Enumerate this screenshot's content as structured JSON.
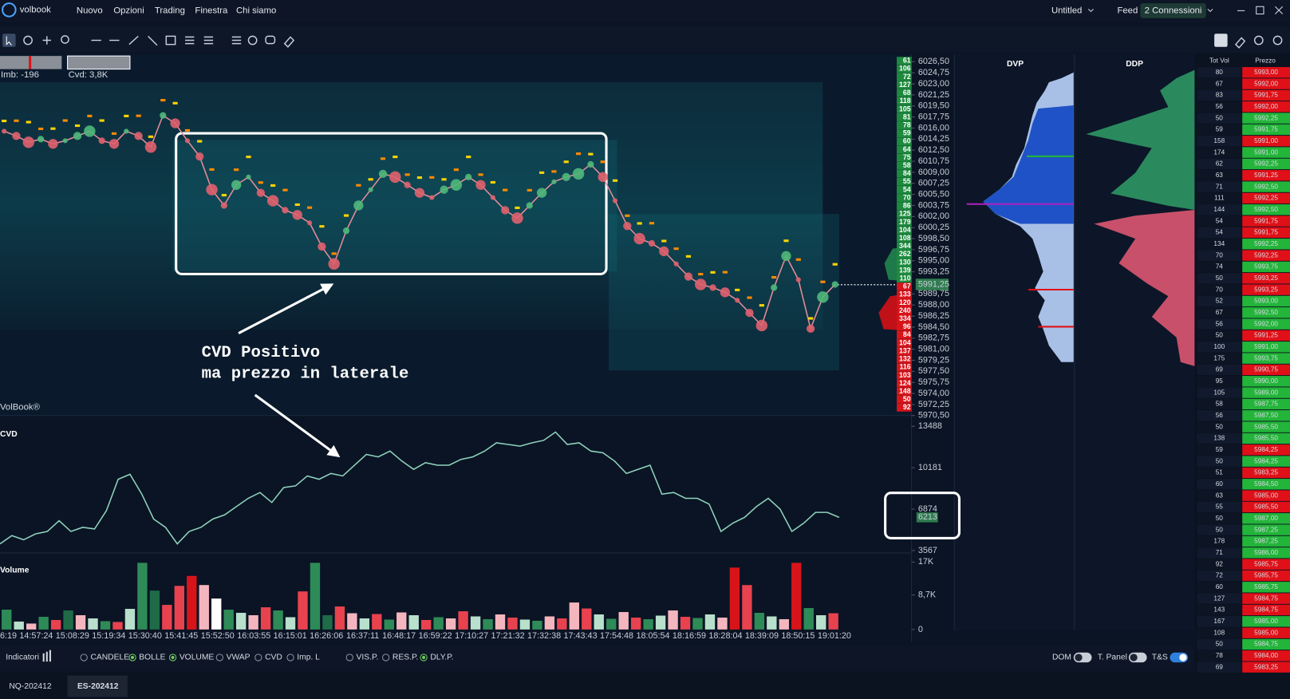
{
  "menu": {
    "logo": "volbook",
    "items": [
      "Nuovo",
      "Opzioni",
      "Trading",
      "Finestra",
      "Chi siamo"
    ],
    "workspace": "Untitled",
    "feed": "Feed",
    "connections": "2 Connessioni"
  },
  "main_chart": {
    "imb": "Imb: -196",
    "cvd": "Cvd: 3,8K",
    "watermark": "VolBook®",
    "ylim": [
      5970.5,
      6026.5
    ],
    "yticks": [
      {
        "value": 6026.5,
        "label": "6026,50"
      },
      {
        "value": 6024.75,
        "label": "6024,75"
      },
      {
        "value": 6023,
        "label": "6023,00"
      },
      {
        "value": 6021.25,
        "label": "6021,25"
      },
      {
        "value": 6019.5,
        "label": "6019,50"
      },
      {
        "value": 6017.75,
        "label": "6017,75"
      },
      {
        "value": 6016,
        "label": "6016,00"
      },
      {
        "value": 6014.25,
        "label": "6014,25"
      },
      {
        "value": 6012.5,
        "label": "6012,50"
      },
      {
        "value": 6010.75,
        "label": "6010,75"
      },
      {
        "value": 6009,
        "label": "6009,00"
      },
      {
        "value": 6007.25,
        "label": "6007,25"
      },
      {
        "value": 6005.5,
        "label": "6005,50"
      },
      {
        "value": 6003.75,
        "label": "6003,75"
      },
      {
        "value": 6002,
        "label": "6002,00"
      },
      {
        "value": 6000.25,
        "label": "6000,25"
      },
      {
        "value": 5998.5,
        "label": "5998,50"
      },
      {
        "value": 5996.75,
        "label": "5996,75"
      },
      {
        "value": 5995,
        "label": "5995,00"
      },
      {
        "value": 5993.25,
        "label": "5993,25"
      },
      {
        "value": 5989.75,
        "label": "5989,75"
      },
      {
        "value": 5988,
        "label": "5988,00"
      },
      {
        "value": 5986.25,
        "label": "5986,25"
      },
      {
        "value": 5984.5,
        "label": "5984,50"
      },
      {
        "value": 5982.75,
        "label": "5982,75"
      },
      {
        "value": 5981,
        "label": "5981,00"
      },
      {
        "value": 5979.25,
        "label": "5979,25"
      },
      {
        "value": 5977.5,
        "label": "5977,50"
      },
      {
        "value": 5975.75,
        "label": "5975,75"
      },
      {
        "value": 5974,
        "label": "5974,00"
      },
      {
        "value": 5972.25,
        "label": "5972,25"
      },
      {
        "value": 5970.5,
        "label": "5970,50"
      }
    ],
    "current_price": {
      "value": 5991.25,
      "label": "5991,25"
    },
    "ask_color": "#1e8a3e",
    "bid_color": "#d7141a",
    "ask_volumes": [
      61,
      106,
      72,
      127,
      68,
      118,
      105,
      81,
      78,
      59,
      60,
      64,
      75,
      58,
      84,
      55,
      54,
      70,
      86,
      125,
      179,
      104,
      108,
      344,
      262,
      130,
      139,
      110
    ],
    "bid_volumes": [
      67,
      133,
      120,
      240,
      334,
      96,
      84,
      104,
      137,
      132,
      116,
      103,
      124,
      148,
      50,
      92
    ],
    "price_color": "#e58d98",
    "price": [
      6015.5,
      6014.75,
      6013.75,
      6014.25,
      6013.5,
      6014,
      6014.75,
      6015.5,
      6014,
      6013.5,
      6015.5,
      6014.75,
      6013,
      6018,
      6016.75,
      6014,
      6011.5,
      6006.25,
      6003.75,
      6007,
      6008.25,
      6005.75,
      6004.5,
      6003,
      6002.25,
      6001,
      5997.25,
      5994.5,
      5999.75,
      6003.75,
      6006.25,
      6008.75,
      6008.25,
      6007,
      6005.75,
      6005,
      6006.25,
      6007,
      6008.25,
      6007,
      6005,
      6003,
      6001.75,
      6003.75,
      6005.75,
      6007.5,
      6008.25,
      6008.75,
      6010.25,
      6008.25,
      6004.5,
      6000.5,
      5998.5,
      5997.75,
      5996.5,
      5994.5,
      5992.5,
      5991.25,
      5990.75,
      5990,
      5988.75,
      5986.75,
      5984.75,
      5990.75,
      5995.75,
      5992,
      5984.25,
      5989.25,
      5991.25
    ]
  },
  "annotation": [
    "CVD Positivo",
    "ma prezzo in laterale"
  ],
  "cvd_panel": {
    "title": "CVD",
    "color": "#8fd2bd",
    "ylim": [
      3567,
      13488
    ],
    "yticks": [
      13488,
      10181,
      6874,
      3567
    ],
    "current": 6213,
    "values": [
      4096,
      4758,
      4427,
      4890,
      5088,
      5948,
      5088,
      5419,
      5287,
      6742,
      9255,
      9652,
      8065,
      6080,
      5419,
      4096,
      5088,
      5419,
      6080,
      6411,
      7072,
      7734,
      8197,
      7403,
      8594,
      8726,
      9520,
      9255,
      9718,
      9520,
      10379,
      11239,
      11041,
      11504,
      10710,
      10049,
      10578,
      10379,
      10379,
      10842,
      11041,
      11504,
      12165,
      12033,
      11901,
      12165,
      12364,
      13025,
      12033,
      12165,
      11504,
      11371,
      10710,
      9718,
      10049,
      10379,
      8065,
      8197,
      7734,
      7734,
      7271,
      5088,
      5750,
      6213,
      7072,
      7734,
      6874,
      5088,
      5750,
      6610,
      6610,
      6213
    ]
  },
  "volume_panel": {
    "title": "Volume",
    "ylim": [
      0,
      17000
    ],
    "yticks": [
      {
        "value": 17000,
        "label": "17K"
      },
      {
        "value": 8700,
        "label": "8,7K"
      },
      0
    ],
    "values": [
      5000,
      2000,
      1500,
      3200,
      2400,
      4800,
      3600,
      2800,
      2100,
      1900,
      5200,
      16800,
      9800,
      6200,
      11000,
      13500,
      11200,
      7800,
      5000,
      4200,
      3600,
      5600,
      4800,
      3100,
      9600,
      16800,
      3600,
      5800,
      4100,
      2800,
      3900,
      2500,
      4300,
      3600,
      2400,
      3100,
      2800,
      4600,
      3300,
      2600,
      3800,
      3000,
      2500,
      2200,
      3300,
      2800,
      6800,
      5300,
      3800,
      2700,
      4400,
      3000,
      2600,
      3500,
      4800,
      3200,
      2900,
      3800,
      3000,
      15600,
      11200,
      4200,
      3300,
      2600,
      16800,
      5400,
      3600,
      4100
    ],
    "colors": [
      "#2e8b57",
      "#b8e0cc",
      "#f4b6be",
      "#2e8b57",
      "#e8424f",
      "#1f6b48",
      "#f4b6be",
      "#b8e0cc",
      "#2e8b57",
      "#e8424f",
      "#b8e0cc",
      "#2e8b57",
      "#1f6b48",
      "#e8424f",
      "#e8424f",
      "#d7141a",
      "#f4b6be",
      "#ffffff",
      "#2e8b57",
      "#b8e0cc",
      "#f4b6be",
      "#e8424f",
      "#2e8b57",
      "#b8e0cc",
      "#e8424f",
      "#2e8b57",
      "#1f6b48",
      "#e8424f",
      "#f4b6be",
      "#b8e0cc",
      "#e8424f",
      "#2e8b57",
      "#f4b6be",
      "#b8e0cc",
      "#e8424f",
      "#2e8b57",
      "#f4b6be",
      "#e8424f",
      "#b8e0cc",
      "#2e8b57",
      "#f4b6be",
      "#e8424f",
      "#b8e0cc",
      "#2e8b57",
      "#f4b6be",
      "#e8424f",
      "#f4b6be",
      "#e8424f",
      "#b8e0cc",
      "#2e8b57",
      "#f4b6be",
      "#e8424f",
      "#2e8b57",
      "#b8e0cc",
      "#f4b6be",
      "#e8424f",
      "#2e8b57",
      "#b8e0cc",
      "#f4b6be",
      "#d7141a",
      "#e8424f",
      "#2e8b57",
      "#b8e0cc",
      "#f4b6be",
      "#d7141a",
      "#2e8b57",
      "#b8e0cc",
      "#e8424f"
    ]
  },
  "time_labels": [
    "6:19",
    "14:57:24",
    "15:08:29",
    "15:19:34",
    "15:30:40",
    "15:41:45",
    "15:52:50",
    "16:03:55",
    "16:15:01",
    "16:26:06",
    "16:37:11",
    "16:48:17",
    "16:59:22",
    "17:10:27",
    "17:21:32",
    "17:32:38",
    "17:43:43",
    "17:54:48",
    "18:05:54",
    "18:16:59",
    "18:28:04",
    "18:39:09",
    "18:50:15",
    "19:01:20"
  ],
  "profiles": {
    "dvp": "DVP",
    "ddp": "DDP"
  },
  "dom": {
    "headers": [
      "Tot Vol",
      "Prezzo"
    ],
    "rows": [
      {
        "vol": 80,
        "price": "5993,00",
        "color": "#e01018"
      },
      {
        "vol": 67,
        "price": "5992,00",
        "color": "#e01018"
      },
      {
        "vol": 83,
        "price": "5991,75",
        "color": "#e01018"
      },
      {
        "vol": 56,
        "price": "5992,00",
        "color": "#e01018"
      },
      {
        "vol": 50,
        "price": "5992,25",
        "color": "#23b43a"
      },
      {
        "vol": 59,
        "price": "5991,75",
        "color": "#23b43a"
      },
      {
        "vol": 158,
        "price": "5991,00",
        "color": "#e01018"
      },
      {
        "vol": 174,
        "price": "5991,00",
        "color": "#23b43a"
      },
      {
        "vol": 62,
        "price": "5992,25",
        "color": "#23b43a"
      },
      {
        "vol": 63,
        "price": "5991,25",
        "color": "#e01018"
      },
      {
        "vol": 71,
        "price": "5992,50",
        "color": "#23b43a"
      },
      {
        "vol": 111,
        "price": "5992,25",
        "color": "#e01018"
      },
      {
        "vol": 144,
        "price": "5992,50",
        "color": "#23b43a"
      },
      {
        "vol": 54,
        "price": "5991,75",
        "color": "#e01018"
      },
      {
        "vol": 54,
        "price": "5991,75",
        "color": "#e01018"
      },
      {
        "vol": 134,
        "price": "5992,25",
        "color": "#23b43a"
      },
      {
        "vol": 70,
        "price": "5992,25",
        "color": "#e01018"
      },
      {
        "vol": 74,
        "price": "5993,75",
        "color": "#23b43a"
      },
      {
        "vol": 50,
        "price": "5993,25",
        "color": "#e01018"
      },
      {
        "vol": 70,
        "price": "5993,25",
        "color": "#e01018"
      },
      {
        "vol": 52,
        "price": "5993,00",
        "color": "#23b43a"
      },
      {
        "vol": 67,
        "price": "5992,50",
        "color": "#23b43a"
      },
      {
        "vol": 56,
        "price": "5992,00",
        "color": "#23b43a"
      },
      {
        "vol": 50,
        "price": "5991,25",
        "color": "#e01018"
      },
      {
        "vol": 100,
        "price": "5991,00",
        "color": "#23b43a"
      },
      {
        "vol": 175,
        "price": "5993,75",
        "color": "#23b43a"
      },
      {
        "vol": 69,
        "price": "5990,75",
        "color": "#e01018"
      },
      {
        "vol": 95,
        "price": "5990,00",
        "color": "#23b43a"
      },
      {
        "vol": 105,
        "price": "5989,00",
        "color": "#23b43a"
      },
      {
        "vol": 58,
        "price": "5987,75",
        "color": "#23b43a"
      },
      {
        "vol": 56,
        "price": "5987,50",
        "color": "#23b43a"
      },
      {
        "vol": 50,
        "price": "5985,50",
        "color": "#23b43a"
      },
      {
        "vol": 138,
        "price": "5985,50",
        "color": "#23b43a"
      },
      {
        "vol": 59,
        "price": "5984,25",
        "color": "#e01018"
      },
      {
        "vol": 50,
        "price": "5984,25",
        "color": "#23b43a"
      },
      {
        "vol": 51,
        "price": "5983,25",
        "color": "#e01018"
      },
      {
        "vol": 60,
        "price": "5984,50",
        "color": "#23b43a"
      },
      {
        "vol": 63,
        "price": "5985,00",
        "color": "#e01018"
      },
      {
        "vol": 55,
        "price": "5985,50",
        "color": "#e01018"
      },
      {
        "vol": 50,
        "price": "5987,00",
        "color": "#23b43a"
      },
      {
        "vol": 50,
        "price": "5987,25",
        "color": "#23b43a"
      },
      {
        "vol": 178,
        "price": "5987,25",
        "color": "#23b43a"
      },
      {
        "vol": 71,
        "price": "5986,00",
        "color": "#23b43a"
      },
      {
        "vol": 92,
        "price": "5985,75",
        "color": "#e01018"
      },
      {
        "vol": 72,
        "price": "5985,75",
        "color": "#e01018"
      },
      {
        "vol": 60,
        "price": "5985,75",
        "color": "#23b43a"
      },
      {
        "vol": 127,
        "price": "5984,75",
        "color": "#e01018"
      },
      {
        "vol": 143,
        "price": "5984,75",
        "color": "#e01018"
      },
      {
        "vol": 167,
        "price": "5985,00",
        "color": "#23b43a"
      },
      {
        "vol": 108,
        "price": "5985,00",
        "color": "#e01018"
      },
      {
        "vol": 50,
        "price": "5984,75",
        "color": "#23b43a"
      },
      {
        "vol": 78,
        "price": "5984,00",
        "color": "#e01018"
      },
      {
        "vol": 69,
        "price": "5983,25",
        "color": "#e01018"
      }
    ]
  },
  "bottom_bar": {
    "indicators": "Indicatori",
    "options": [
      {
        "label": "CANDELE",
        "checked": false
      },
      {
        "label": "BOLLE",
        "checked": true
      },
      {
        "label": "VOLUME",
        "checked": true
      },
      {
        "label": "VWAP",
        "checked": false
      },
      {
        "label": "CVD",
        "checked": false
      },
      {
        "label": "Imp. L",
        "checked": false
      },
      {
        "label": "VIS.P.",
        "checked": false
      },
      {
        "label": "RES.P.",
        "checked": false
      },
      {
        "label": "DLY.P.",
        "checked": true
      }
    ],
    "toggles": [
      {
        "label": "DOM",
        "on": false
      },
      {
        "label": "T. Panel",
        "on": false
      },
      {
        "label": "T&S",
        "on": true
      }
    ]
  },
  "tabs": [
    "NQ-202412",
    "ES-202412"
  ]
}
